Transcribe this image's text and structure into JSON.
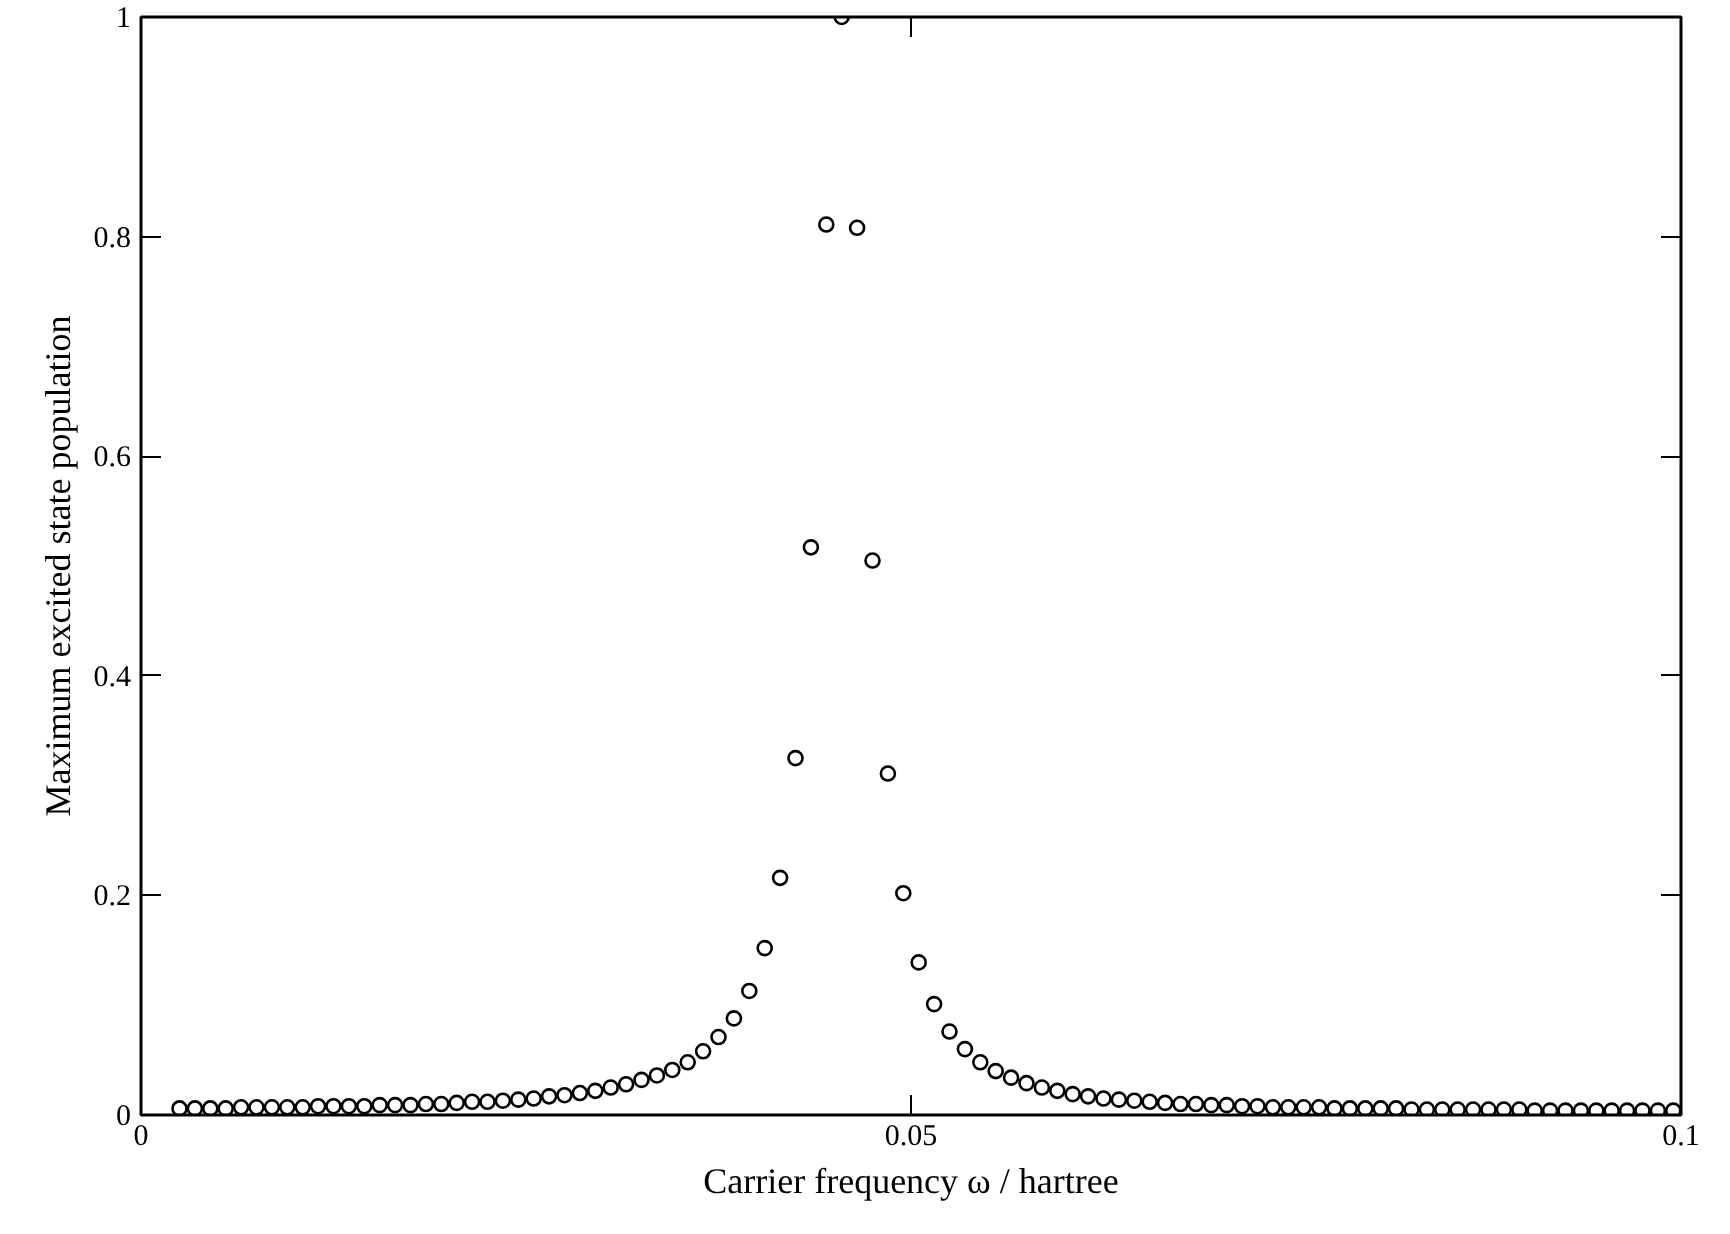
{
  "chart_data": {
    "type": "scatter",
    "xlabel": "Carrier frequency ω / hartree",
    "ylabel": "Maximum excited state population",
    "xlim": [
      0,
      0.1
    ],
    "ylim": [
      0,
      1
    ],
    "xticks": [
      0,
      0.05,
      0.1
    ],
    "yticks": [
      0,
      0.2,
      0.4,
      0.6,
      0.8,
      1
    ],
    "grid": false,
    "marker": "circle",
    "series": [
      {
        "color": "#000000",
        "x": [
          0.0025,
          0.0035,
          0.0045,
          0.0055,
          0.0065,
          0.0075,
          0.0085,
          0.0095,
          0.0105,
          0.0115,
          0.0125,
          0.0135,
          0.0145,
          0.0155,
          0.0165,
          0.0175,
          0.0185,
          0.0195,
          0.0205,
          0.0215,
          0.0225,
          0.0235,
          0.0245,
          0.0255,
          0.0265,
          0.0275,
          0.0285,
          0.0295,
          0.0305,
          0.0315,
          0.0325,
          0.0335,
          0.0345,
          0.0355,
          0.0365,
          0.0375,
          0.0385,
          0.0395,
          0.0405,
          0.0415,
          0.0425,
          0.0435,
          0.0445,
          0.0455,
          0.0465,
          0.0475,
          0.0485,
          0.0495,
          0.0505,
          0.0515,
          0.0525,
          0.0535,
          0.0545,
          0.0555,
          0.0565,
          0.0575,
          0.0585,
          0.0595,
          0.0605,
          0.0615,
          0.0625,
          0.0635,
          0.0645,
          0.0655,
          0.0665,
          0.0675,
          0.0685,
          0.0695,
          0.0705,
          0.0715,
          0.0725,
          0.0735,
          0.0745,
          0.0755,
          0.0765,
          0.0775,
          0.0785,
          0.0795,
          0.0805,
          0.0815,
          0.0825,
          0.0835,
          0.0845,
          0.0855,
          0.0865,
          0.0875,
          0.0885,
          0.0895,
          0.0905,
          0.0915,
          0.0925,
          0.0935,
          0.0945,
          0.0955,
          0.0965,
          0.0975,
          0.0985,
          0.0995
        ],
        "values": [
          0.006,
          0.006,
          0.006,
          0.006,
          0.007,
          0.007,
          0.007,
          0.007,
          0.007,
          0.008,
          0.008,
          0.008,
          0.008,
          0.009,
          0.009,
          0.009,
          0.01,
          0.01,
          0.011,
          0.012,
          0.012,
          0.013,
          0.014,
          0.015,
          0.017,
          0.018,
          0.02,
          0.022,
          0.025,
          0.028,
          0.032,
          0.036,
          0.041,
          0.048,
          0.058,
          0.071,
          0.088,
          0.113,
          0.152,
          0.216,
          0.325,
          0.517,
          0.811,
          1,
          0.808,
          0.505,
          0.311,
          0.202,
          0.139,
          0.101,
          0.076,
          0.06,
          0.048,
          0.04,
          0.034,
          0.029,
          0.025,
          0.022,
          0.019,
          0.017,
          0.015,
          0.014,
          0.013,
          0.012,
          0.011,
          0.01,
          0.01,
          0.009,
          0.009,
          0.008,
          0.008,
          0.007,
          0.007,
          0.007,
          0.007,
          0.006,
          0.006,
          0.006,
          0.006,
          0.006,
          0.005,
          0.005,
          0.005,
          0.005,
          0.005,
          0.005,
          0.005,
          0.005,
          0.004,
          0.004,
          0.004,
          0.004,
          0.004,
          0.004,
          0.004,
          0.004,
          0.004,
          0.004
        ]
      }
    ]
  }
}
